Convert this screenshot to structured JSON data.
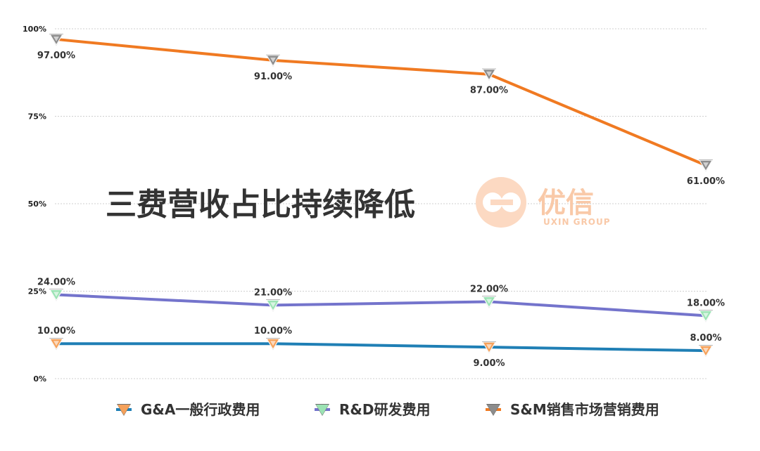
{
  "chart_data": {
    "type": "line",
    "title": "三费营收占比持续降低",
    "categories": [
      "",
      "",
      "",
      ""
    ],
    "yticks": [
      "100%",
      "75%",
      "50%",
      "25%",
      "0%"
    ],
    "ylim": [
      0,
      100
    ],
    "grid": true,
    "legend_position": "bottom",
    "series": [
      {
        "name": "G&A一般行政费用",
        "values": [
          10,
          10,
          9,
          8
        ],
        "labels": [
          "10.00%",
          "10.00%",
          "9.00%",
          "8.00%"
        ],
        "line_color": "#1f7fb5",
        "marker_color": "#f5a15a"
      },
      {
        "name": "R&D研发费用",
        "values": [
          24,
          21,
          22,
          18
        ],
        "labels": [
          "24.00%",
          "21.00%",
          "22.00%",
          "18.00%"
        ],
        "line_color": "#7474cc",
        "marker_color": "#9be3b4"
      },
      {
        "name": "S&M销售市场营销费用",
        "values": [
          97,
          91,
          87,
          61
        ],
        "labels": [
          "97.00%",
          "91.00%",
          "87.00%",
          "61.00%"
        ],
        "line_color": "#f07a22",
        "marker_color": "#8c8c8c"
      }
    ]
  },
  "watermark": {
    "brand": "优信",
    "sub": "UXIN GROUP",
    "logo": "uxin-logo-icon"
  }
}
